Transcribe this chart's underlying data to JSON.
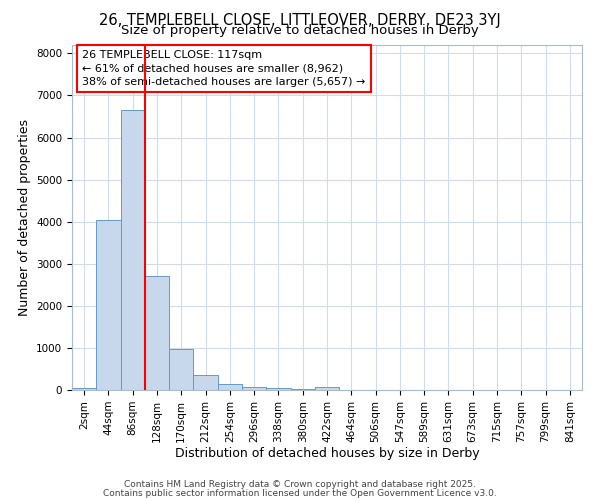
{
  "title1": "26, TEMPLEBELL CLOSE, LITTLEOVER, DERBY, DE23 3YJ",
  "title2": "Size of property relative to detached houses in Derby",
  "xlabel": "Distribution of detached houses by size in Derby",
  "ylabel": "Number of detached properties",
  "bar_color": "#c8d8ec",
  "bar_edge_color": "#6699cc",
  "categories": [
    "2sqm",
    "44sqm",
    "86sqm",
    "128sqm",
    "170sqm",
    "212sqm",
    "254sqm",
    "296sqm",
    "338sqm",
    "380sqm",
    "422sqm",
    "464sqm",
    "506sqm",
    "547sqm",
    "589sqm",
    "631sqm",
    "673sqm",
    "715sqm",
    "757sqm",
    "799sqm",
    "841sqm"
  ],
  "values": [
    50,
    4050,
    6650,
    2700,
    970,
    350,
    150,
    80,
    50,
    30,
    60,
    5,
    3,
    2,
    1,
    1,
    1,
    1,
    1,
    1,
    1
  ],
  "red_line_bin": 2,
  "ylim": [
    0,
    8200
  ],
  "yticks": [
    0,
    1000,
    2000,
    3000,
    4000,
    5000,
    6000,
    7000,
    8000
  ],
  "annotation_text": "26 TEMPLEBELL CLOSE: 117sqm\n← 61% of detached houses are smaller (8,962)\n38% of semi-detached houses are larger (5,657) →",
  "footnote1": "Contains HM Land Registry data © Crown copyright and database right 2025.",
  "footnote2": "Contains public sector information licensed under the Open Government Licence v3.0.",
  "bg_color": "#ffffff",
  "plot_bg_color": "#ffffff",
  "grid_color": "#d0dcea",
  "title1_fontsize": 10.5,
  "title2_fontsize": 9.5,
  "xlabel_fontsize": 9,
  "ylabel_fontsize": 9,
  "tick_fontsize": 7.5,
  "annot_fontsize": 8,
  "footnote_fontsize": 6.5
}
